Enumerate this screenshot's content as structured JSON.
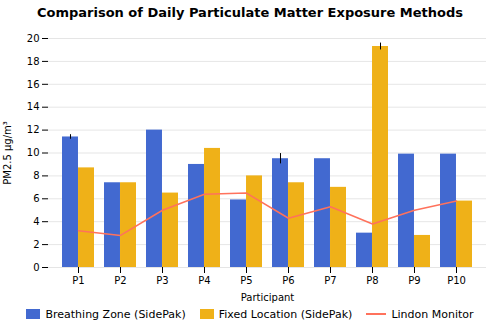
{
  "chart_data": {
    "type": "bar",
    "title": "Comparison of Daily Particulate Matter Exposure Methods",
    "xlabel": "Participant",
    "ylabel": "PM2.5 μg/m³",
    "categories": [
      "P1",
      "P2",
      "P3",
      "P4",
      "P5",
      "P6",
      "P7",
      "P8",
      "P9",
      "P10"
    ],
    "series": [
      {
        "name": "Breathing Zone (SidePak)",
        "values": [
          11.4,
          7.4,
          12.0,
          9.0,
          5.9,
          9.5,
          9.5,
          3.0,
          9.9,
          9.9
        ],
        "errors": [
          0.2,
          0.0,
          0.0,
          0.0,
          0.0,
          0.45,
          0.0,
          0.0,
          0.0,
          0.0
        ]
      },
      {
        "name": "Fixed Location (SidePak)",
        "values": [
          8.7,
          7.4,
          6.5,
          10.4,
          8.0,
          7.4,
          7.0,
          19.3,
          2.8,
          5.8
        ],
        "errors": [
          0.0,
          0.0,
          0.0,
          0.0,
          0.0,
          0.0,
          0.0,
          0.3,
          0.0,
          0.0
        ]
      },
      {
        "name": "Lindon Monitor",
        "type": "line",
        "values": [
          3.2,
          2.8,
          5.0,
          6.4,
          6.5,
          4.3,
          5.3,
          3.8,
          5.0,
          5.8
        ]
      }
    ],
    "ylim": [
      0,
      20
    ],
    "yticks": [
      0,
      2,
      4,
      6,
      8,
      10,
      12,
      14,
      16,
      18,
      20
    ],
    "grid": true,
    "legend": "bottom"
  }
}
